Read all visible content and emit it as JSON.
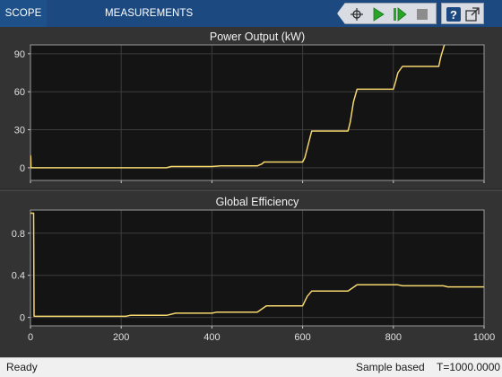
{
  "toolstrip": {
    "tabs": [
      "SCOPE",
      "MEASUREMENTS"
    ],
    "icons": [
      "signal-select-icon",
      "run-icon",
      "step-forward-icon",
      "stop-icon",
      "help-icon",
      "undock-icon"
    ]
  },
  "colors": {
    "toolstrip_bg": "#1c4a80",
    "plot_bg": "#141414",
    "figure_bg": "#333333",
    "trace": "#f5d76e",
    "grid": "#3c3c3c"
  },
  "chart_data": [
    {
      "type": "line",
      "title": "Power Output (kW)",
      "xlabel": "",
      "ylabel": "",
      "xlim": [
        0,
        1000
      ],
      "ylim": [
        -10,
        97
      ],
      "yticks": [
        0,
        30,
        60,
        90
      ],
      "xticks": [
        0,
        200,
        400,
        600,
        800,
        1000
      ],
      "show_x_tick_labels": false,
      "grid": true,
      "series": [
        {
          "x": [
            0,
            0.6,
            1.2,
            2,
            100,
            200,
            300,
            310,
            400,
            420,
            500,
            510,
            515,
            520,
            600,
            605,
            612,
            620,
            700,
            705,
            712,
            720,
            800,
            805,
            810,
            820,
            900,
            905,
            915
          ],
          "y": [
            10,
            8,
            0,
            0,
            0,
            0,
            0,
            1,
            1,
            1.5,
            1.5,
            3,
            4.5,
            4.5,
            4.5,
            8,
            18,
            29,
            29,
            36,
            52,
            62,
            62,
            68,
            75,
            80,
            80,
            88,
            100
          ]
        }
      ]
    },
    {
      "type": "line",
      "title": "Global Efficiency",
      "xlabel": "",
      "ylabel": "",
      "xlim": [
        0,
        1000
      ],
      "ylim": [
        -0.08,
        1.02
      ],
      "yticks": [
        0,
        0.4,
        0.8
      ],
      "xticks": [
        0,
        200,
        400,
        600,
        800,
        1000
      ],
      "show_x_tick_labels": true,
      "grid": true,
      "series": [
        {
          "x": [
            0,
            0.4,
            7,
            8,
            100,
            210,
            220,
            300,
            310,
            320,
            400,
            410,
            420,
            500,
            510,
            520,
            600,
            610,
            620,
            700,
            710,
            720,
            800,
            810,
            820,
            900,
            910,
            920,
            1000
          ],
          "y": [
            0.99,
            0.99,
            0.99,
            0.01,
            0.01,
            0.01,
            0.02,
            0.02,
            0.03,
            0.04,
            0.04,
            0.05,
            0.05,
            0.05,
            0.08,
            0.11,
            0.11,
            0.2,
            0.25,
            0.25,
            0.28,
            0.31,
            0.31,
            0.31,
            0.3,
            0.3,
            0.3,
            0.29,
            0.29
          ]
        }
      ]
    }
  ],
  "status": {
    "left": "Ready",
    "mode": "Sample based",
    "time": "T=1000.0000"
  }
}
